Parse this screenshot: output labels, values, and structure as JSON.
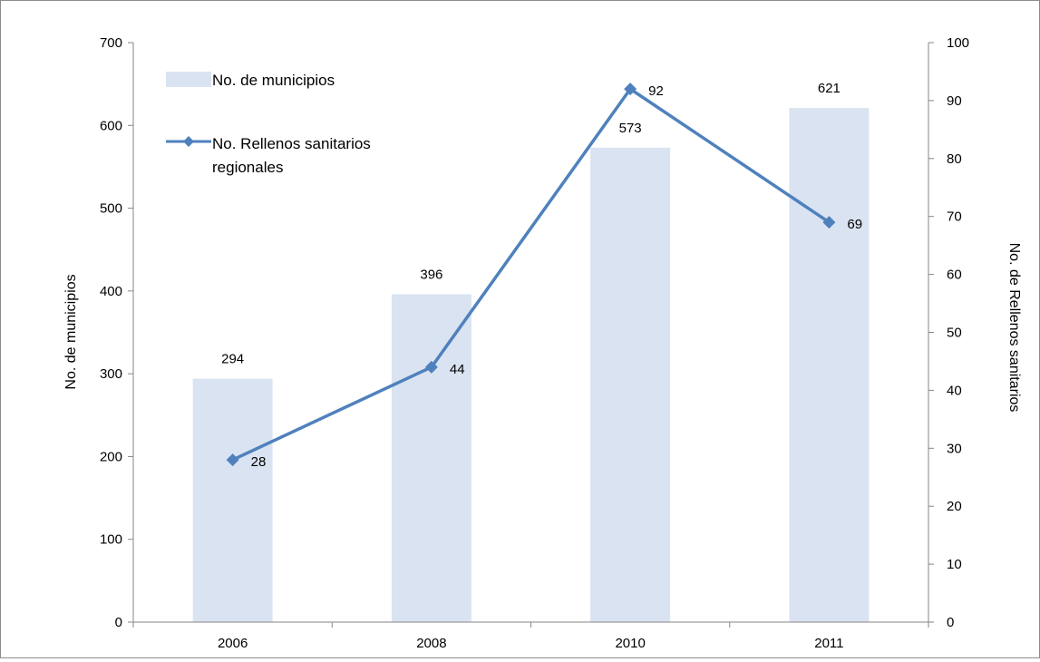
{
  "chart_data": {
    "type": "bar",
    "categories": [
      "2006",
      "2008",
      "2010",
      "2011"
    ],
    "series": [
      {
        "name": "No. de municipios",
        "type": "bar",
        "axis": "left",
        "color": "#dae3f1",
        "values": [
          294,
          396,
          573,
          621
        ]
      },
      {
        "name": "No. Rellenos sanitarios regionales",
        "type": "line",
        "axis": "right",
        "color": "#4f81bd",
        "marker": "diamond",
        "values": [
          28,
          44,
          92,
          69
        ]
      }
    ],
    "ylabel": "No. de municipios",
    "y2label": "No. de Rellenos sanitarios",
    "ylim": [
      0,
      700
    ],
    "y2lim": [
      0,
      100
    ],
    "yticks": [
      0,
      100,
      200,
      300,
      400,
      500,
      600,
      700
    ],
    "y2ticks": [
      0,
      10,
      20,
      30,
      40,
      50,
      60,
      70,
      80,
      90,
      100
    ],
    "legend_position": "top-left",
    "legend_lines": [
      [
        "No. de municipios"
      ],
      [
        "No. Rellenos sanitarios",
        "regionales"
      ]
    ],
    "grid": false
  }
}
